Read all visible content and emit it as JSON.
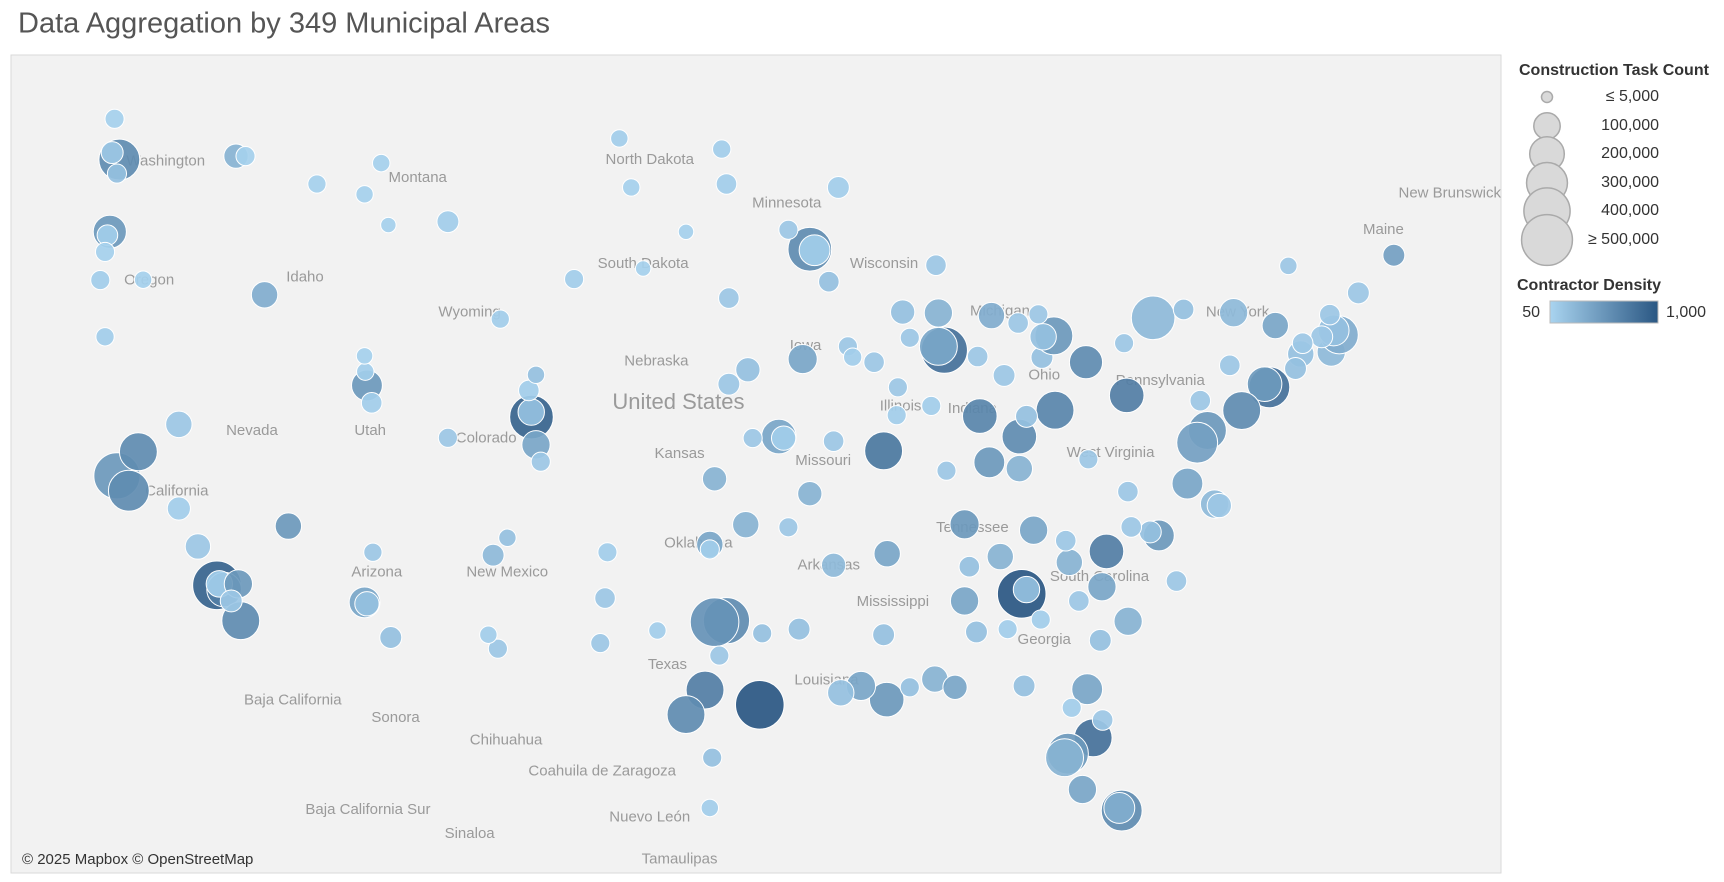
{
  "chart_data": {
    "type": "bubble-map",
    "title": "Data Aggregation by 349 Municipal Areas",
    "attribution": "© 2025 Mapbox © OpenStreetMap",
    "xlim": [
      -126.85,
      -64.27
    ],
    "ylim": [
      23.4,
      50.5
    ],
    "map_labels": [
      "Washington",
      "Montana",
      "Oregon",
      "Idaho",
      "Wyoming",
      "North Dakota",
      "South Dakota",
      "Minnesota",
      "Wisconsin",
      "Nebraska",
      "Iowa",
      "Nevada",
      "Utah",
      "Colorado",
      "Kansas",
      "Missouri",
      "California",
      "Arizona",
      "New Mexico",
      "Oklahoma",
      "Arkansas",
      "Tennessee",
      "Mississippi",
      "Georgia",
      "Texas",
      "Louisiana",
      "South Carolina",
      "Illinois",
      "Indiana",
      "Ohio",
      "Michigan",
      "Pennsylvania",
      "West Virginia",
      "New York",
      "Maine",
      "New Brunswick",
      "United States",
      "Baja California",
      "Sonora",
      "Chihuahua",
      "Coahuila de Zaragoza",
      "Baja California Sur",
      "Nuevo León",
      "Sinaloa",
      "Tamaulipas"
    ],
    "size_legend": {
      "title": "Construction Task Count",
      "ticks": [
        {
          "value": 5000,
          "label": "≤ 5,000"
        },
        {
          "value": 100000,
          "label": "100,000"
        },
        {
          "value": 200000,
          "label": "200,000"
        },
        {
          "value": 300000,
          "label": "300,000"
        },
        {
          "value": 400000,
          "label": "400,000"
        },
        {
          "value": 500000,
          "label": "≥ 500,000"
        }
      ]
    },
    "color_legend": {
      "title": "Contractor Density",
      "ticks": [
        50,
        {
          "value": 1000,
          "label": "1,000"
        }
      ],
      "colors": [
        "#a9d4f0",
        "#2a5783"
      ]
    },
    "points": [
      [
        -122.3,
        47.6,
        300000,
        600
      ],
      [
        -122.6,
        47.8,
        60000,
        150
      ],
      [
        -122.4,
        47.2,
        40000,
        200
      ],
      [
        -122.7,
        45.5,
        180000,
        500
      ],
      [
        -122.8,
        45.4,
        50000,
        100
      ],
      [
        -117.4,
        47.7,
        80000,
        300
      ],
      [
        -117.0,
        47.7,
        40000,
        80
      ],
      [
        -122.9,
        44.9,
        40000,
        80
      ],
      [
        -123.1,
        44.05,
        40000,
        100
      ],
      [
        -122.9,
        42.3,
        35000,
        100
      ],
      [
        -121.3,
        44.06,
        30000,
        80
      ],
      [
        -116.2,
        43.6,
        100000,
        350
      ],
      [
        -114.0,
        46.9,
        35000,
        80
      ],
      [
        -112.0,
        46.6,
        30000,
        80
      ],
      [
        -111.3,
        47.5,
        30000,
        80
      ],
      [
        -108.5,
        45.8,
        60000,
        100
      ],
      [
        -111.0,
        45.7,
        20000,
        80
      ],
      [
        -122.5,
        48.75,
        40000,
        80
      ],
      [
        -111.9,
        40.76,
        150000,
        500
      ],
      [
        -111.7,
        40.2,
        50000,
        100
      ],
      [
        -111.97,
        41.2,
        30000,
        100
      ],
      [
        -112.0,
        41.7,
        25000,
        80
      ],
      [
        -119.8,
        39.5,
        100000,
        150
      ],
      [
        -122.4,
        37.8,
        400000,
        500
      ],
      [
        -121.9,
        37.3,
        300000,
        600
      ],
      [
        -121.5,
        38.6,
        250000,
        600
      ],
      [
        -119.8,
        36.7,
        70000,
        100
      ],
      [
        -119.0,
        35.4,
        90000,
        150
      ],
      [
        -118.2,
        34.05,
        450000,
        900
      ],
      [
        -117.9,
        33.9,
        200000,
        700
      ],
      [
        -118.1,
        34.1,
        100000,
        100
      ],
      [
        -117.2,
        32.8,
        250000,
        600
      ],
      [
        -117.3,
        34.1,
        120000,
        500
      ],
      [
        -117.6,
        33.5,
        60000,
        150
      ],
      [
        -115.2,
        36.1,
        100000,
        500
      ],
      [
        -112.0,
        33.45,
        150000,
        400
      ],
      [
        -111.9,
        33.4,
        80000,
        200
      ],
      [
        -110.9,
        32.2,
        60000,
        200
      ],
      [
        -111.65,
        35.2,
        35000,
        150
      ],
      [
        -106.6,
        35.1,
        60000,
        250
      ],
      [
        -106.0,
        35.7,
        30000,
        200
      ],
      [
        -106.4,
        31.8,
        40000,
        150
      ],
      [
        -106.8,
        32.3,
        30000,
        100
      ],
      [
        -104.99,
        39.74,
        350000,
        900
      ],
      [
        -105.0,
        39.9,
        100000,
        200
      ],
      [
        -104.8,
        38.83,
        120000,
        400
      ],
      [
        -104.6,
        38.27,
        40000,
        150
      ],
      [
        -105.1,
        40.6,
        50000,
        100
      ],
      [
        -108.5,
        39.06,
        40000,
        150
      ],
      [
        -104.8,
        41.1,
        30000,
        200
      ],
      [
        -106.3,
        42.85,
        35000,
        100
      ],
      [
        -103.2,
        44.08,
        40000,
        100
      ],
      [
        -100.8,
        46.8,
        30000,
        80
      ],
      [
        -101.3,
        48.2,
        30000,
        100
      ],
      [
        -96.8,
        46.9,
        50000,
        100
      ],
      [
        -97.0,
        47.9,
        35000,
        100
      ],
      [
        -96.7,
        43.5,
        50000,
        150
      ],
      [
        -98.5,
        45.5,
        20000,
        80
      ],
      [
        -100.3,
        44.4,
        20000,
        80
      ],
      [
        -93.3,
        44.98,
        350000,
        600
      ],
      [
        -93.1,
        44.95,
        150000,
        100
      ],
      [
        -92.1,
        46.8,
        60000,
        100
      ],
      [
        -94.2,
        45.56,
        40000,
        150
      ],
      [
        -92.5,
        44.0,
        50000,
        200
      ],
      [
        -95.9,
        41.26,
        80000,
        200
      ],
      [
        -96.7,
        40.8,
        60000,
        150
      ],
      [
        -94.6,
        39.1,
        200000,
        400
      ],
      [
        -94.4,
        39.05,
        80000,
        100
      ],
      [
        -97.3,
        37.7,
        80000,
        300
      ],
      [
        -95.7,
        39.05,
        40000,
        150
      ],
      [
        -93.6,
        41.6,
        130000,
        400
      ],
      [
        -91.7,
        42.0,
        40000,
        150
      ],
      [
        -91.5,
        41.66,
        35000,
        100
      ],
      [
        -90.6,
        41.5,
        50000,
        150
      ],
      [
        -90.2,
        38.63,
        250000,
        750
      ],
      [
        -93.3,
        37.2,
        80000,
        300
      ],
      [
        -92.3,
        38.95,
        50000,
        150
      ],
      [
        -95.99,
        36.15,
        100000,
        300
      ],
      [
        -97.5,
        35.47,
        100000,
        400
      ],
      [
        -97.5,
        35.3,
        40000,
        100
      ],
      [
        -96.8,
        32.8,
        400000,
        600
      ],
      [
        -97.3,
        32.75,
        450000,
        550
      ],
      [
        -97.7,
        30.3,
        250000,
        700
      ],
      [
        -98.5,
        29.4,
        250000,
        600
      ],
      [
        -95.4,
        29.76,
        450000,
        1000
      ],
      [
        -97.4,
        27.8,
        40000,
        200
      ],
      [
        -97.5,
        25.9,
        30000,
        100
      ],
      [
        -101.9,
        33.6,
        50000,
        150
      ],
      [
        -101.8,
        35.2,
        40000,
        100
      ],
      [
        -102.1,
        32.0,
        40000,
        150
      ],
      [
        -99.7,
        32.45,
        30000,
        100
      ],
      [
        -97.1,
        31.55,
        40000,
        150
      ],
      [
        -95.3,
        32.35,
        40000,
        200
      ],
      [
        -92.3,
        34.75,
        80000,
        250
      ],
      [
        -94.2,
        36.06,
        40000,
        150
      ],
      [
        -93.75,
        32.5,
        60000,
        200
      ],
      [
        -90.07,
        29.95,
        200000,
        500
      ],
      [
        -91.15,
        30.45,
        130000,
        400
      ],
      [
        -92.0,
        30.2,
        100000,
        200
      ],
      [
        -90.2,
        32.3,
        60000,
        200
      ],
      [
        -89.1,
        30.4,
        40000,
        200
      ],
      [
        -88.05,
        30.7,
        100000,
        300
      ],
      [
        -87.2,
        30.4,
        80000,
        400
      ],
      [
        -90.05,
        35.15,
        100000,
        400
      ],
      [
        -86.8,
        36.16,
        130000,
        500
      ],
      [
        -83.9,
        35.96,
        120000,
        400
      ],
      [
        -85.3,
        35.05,
        100000,
        300
      ],
      [
        -86.8,
        33.5,
        120000,
        400
      ],
      [
        -86.6,
        34.7,
        50000,
        200
      ],
      [
        -86.3,
        32.4,
        60000,
        200
      ],
      [
        -84.4,
        33.75,
        450000,
        1000
      ],
      [
        -84.2,
        33.9,
        100000,
        200
      ],
      [
        -81.1,
        32.1,
        60000,
        200
      ],
      [
        -82.0,
        33.5,
        50000,
        150
      ],
      [
        -84.99,
        32.5,
        40000,
        100
      ],
      [
        -83.6,
        32.84,
        40000,
        100
      ],
      [
        -81.65,
        30.33,
        150000,
        400
      ],
      [
        -84.3,
        30.45,
        60000,
        200
      ],
      [
        -81.4,
        28.54,
        250000,
        800
      ],
      [
        -82.46,
        27.95,
        300000,
        500
      ],
      [
        -82.6,
        27.8,
        250000,
        300
      ],
      [
        -81.85,
        26.6,
        120000,
        400
      ],
      [
        -80.2,
        25.8,
        300000,
        600
      ],
      [
        -80.3,
        25.9,
        150000,
        350
      ],
      [
        -82.3,
        29.65,
        40000,
        100
      ],
      [
        -81.0,
        29.2,
        50000,
        150
      ],
      [
        -80.84,
        35.23,
        200000,
        700
      ],
      [
        -78.64,
        35.78,
        150000,
        500
      ],
      [
        -79.0,
        35.9,
        60000,
        200
      ],
      [
        -79.8,
        36.07,
        50000,
        150
      ],
      [
        -81.03,
        34.0,
        120000,
        400
      ],
      [
        -79.93,
        32.78,
        120000,
        300
      ],
      [
        -82.4,
        34.85,
        100000,
        300
      ],
      [
        -77.9,
        34.2,
        50000,
        150
      ],
      [
        -82.55,
        35.6,
        50000,
        150
      ],
      [
        -85.76,
        38.25,
        150000,
        500
      ],
      [
        -84.5,
        38.04,
        100000,
        300
      ],
      [
        -86.16,
        39.77,
        200000,
        650
      ],
      [
        -84.5,
        39.1,
        200000,
        600
      ],
      [
        -83.0,
        39.96,
        250000,
        650
      ],
      [
        -81.7,
        41.5,
        180000,
        600
      ],
      [
        -83.55,
        41.65,
        60000,
        200
      ],
      [
        -83.05,
        42.33,
        250000,
        500
      ],
      [
        -83.5,
        42.3,
        100000,
        200
      ],
      [
        -85.67,
        42.96,
        100000,
        350
      ],
      [
        -84.55,
        42.73,
        50000,
        150
      ],
      [
        -83.7,
        43.0,
        40000,
        150
      ],
      [
        -79.99,
        40.44,
        200000,
        700
      ],
      [
        -76.9,
        40.27,
        50000,
        150
      ],
      [
        -80.1,
        42.1,
        40000,
        150
      ],
      [
        -84.2,
        39.76,
        60000,
        200
      ],
      [
        -87.65,
        41.88,
        400000,
        800
      ],
      [
        -87.9,
        42.0,
        250000,
        400
      ],
      [
        -87.9,
        43.04,
        120000,
        300
      ],
      [
        -89.4,
        43.07,
        80000,
        200
      ],
      [
        -88.0,
        44.5,
        50000,
        150
      ],
      [
        -89.1,
        42.27,
        40000,
        150
      ],
      [
        -89.6,
        40.7,
        40000,
        150
      ],
      [
        -89.65,
        39.8,
        40000,
        100
      ],
      [
        -88.2,
        40.1,
        40000,
        100
      ],
      [
        -85.14,
        41.08,
        60000,
        150
      ],
      [
        -86.25,
        41.68,
        50000,
        150
      ],
      [
        -87.56,
        37.97,
        40000,
        150
      ],
      [
        -78.88,
        42.89,
        350000,
        250
      ],
      [
        -77.6,
        43.15,
        50000,
        200
      ],
      [
        -75.5,
        43.05,
        120000,
        250
      ],
      [
        -73.75,
        42.65,
        100000,
        400
      ],
      [
        -74.0,
        40.7,
        300000,
        800
      ],
      [
        -74.2,
        40.8,
        200000,
        500
      ],
      [
        -75.16,
        39.95,
        250000,
        600
      ],
      [
        -76.6,
        39.3,
        250000,
        500
      ],
      [
        -77.03,
        38.9,
        300000,
        450
      ],
      [
        -77.44,
        37.54,
        150000,
        400
      ],
      [
        -76.3,
        36.85,
        120000,
        250
      ],
      [
        -76.1,
        36.8,
        80000,
        150
      ],
      [
        -75.66,
        41.4,
        50000,
        150
      ],
      [
        -72.68,
        41.76,
        100000,
        200
      ],
      [
        -71.4,
        41.82,
        120000,
        250
      ],
      [
        -71.06,
        42.36,
        250000,
        350
      ],
      [
        -71.3,
        42.5,
        150000,
        200
      ],
      [
        -71.8,
        42.3,
        60000,
        150
      ],
      [
        -70.26,
        43.66,
        60000,
        150
      ],
      [
        -68.77,
        44.8,
        60000,
        450
      ],
      [
        -71.46,
        42.99,
        50000,
        150
      ],
      [
        -73.2,
        44.48,
        30000,
        150
      ],
      [
        -72.6,
        42.1,
        50000,
        150
      ],
      [
        -72.9,
        41.3,
        60000,
        200
      ],
      [
        -79.94,
        37.27,
        50000,
        150
      ],
      [
        -81.6,
        38.35,
        40000,
        150
      ]
    ]
  }
}
